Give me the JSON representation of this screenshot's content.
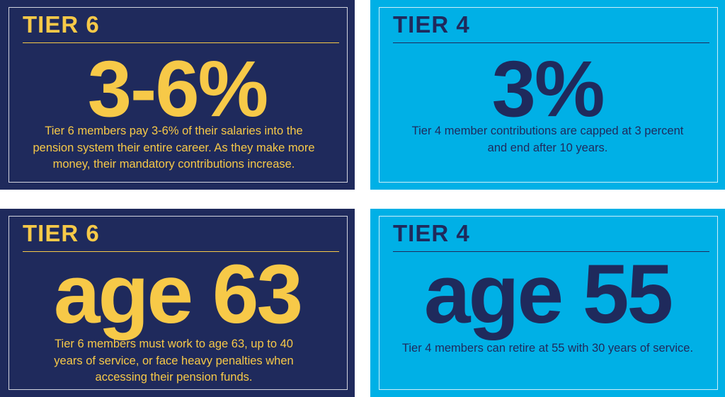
{
  "cards": [
    {
      "heading": "TIER 6",
      "figure": "3-6%",
      "lines": [
        "Tier 6 members pay 3-6% of their salaries into the",
        "pension system their entire career. As they make more",
        "money, their mandatory contributions increase."
      ]
    },
    {
      "heading": "TIER 4",
      "figure": "3%",
      "lines": [
        "Tier 4 member contributions are capped at 3 percent",
        "and end after 10 years."
      ]
    },
    {
      "heading": "TIER 6",
      "figure": "age 63",
      "lines": [
        "Tier 6 members must work to age 63, up to 40",
        "years of service, or face heavy penalties when",
        "accessing their pension funds."
      ]
    },
    {
      "heading": "TIER 4",
      "figure": "age 55",
      "lines": [
        "Tier 4 members can retire at 55 with 30 years of service."
      ]
    }
  ]
}
